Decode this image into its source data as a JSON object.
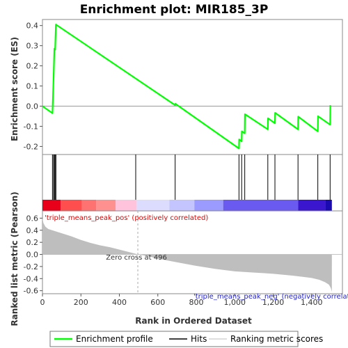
{
  "chart_data": {
    "type": "line",
    "title": "Enrichment plot: MIR185_3P",
    "xlabel": "Rank in Ordered Dataset",
    "ylabel_top": "Enrichment score (ES)",
    "ylabel_bottom": "Ranked list metric (Pearson)",
    "x_ticks": [
      0,
      200,
      400,
      600,
      800,
      1000,
      1200,
      1400
    ],
    "x_tick_labels": [
      "0",
      "200",
      "400",
      "600",
      "800",
      "1,000",
      "1,200",
      "1,400"
    ],
    "xlim": [
      0,
      1560
    ],
    "es_ylim": [
      -0.24,
      0.43
    ],
    "es_ticks": [
      -0.2,
      -0.1,
      0.0,
      0.1,
      0.2,
      0.3,
      0.4
    ],
    "es_tick_labels": [
      "-0.2",
      "-0.1",
      "0.0",
      "0.1",
      "0.2",
      "0.3",
      "0.4"
    ],
    "metric_ylim": [
      -0.65,
      0.72
    ],
    "metric_ticks": [
      -0.6,
      -0.4,
      -0.2,
      0.0,
      0.2,
      0.4,
      0.6
    ],
    "metric_tick_labels": [
      "-0.6",
      "-0.4",
      "-0.2",
      "0.0",
      "0.2",
      "0.4",
      "0.6"
    ],
    "series": [
      {
        "name": "Enrichment profile",
        "color": "#00ff00",
        "x": [
          0,
          52,
          58,
          62,
          66,
          70,
          690,
          691,
          1022,
          1023,
          1036,
          1037,
          1052,
          1053,
          1172,
          1173,
          1209,
          1210,
          1329,
          1330,
          1432,
          1433,
          1496,
          1497
        ],
        "y": [
          0.0,
          -0.035,
          0.145,
          0.285,
          0.28,
          0.405,
          0.005,
          0.012,
          -0.21,
          -0.165,
          -0.175,
          -0.125,
          -0.135,
          -0.04,
          -0.115,
          -0.06,
          -0.085,
          -0.033,
          -0.115,
          -0.052,
          -0.125,
          -0.05,
          -0.092,
          0.005
        ]
      }
    ],
    "hits": [
      52,
      58,
      62,
      66,
      70,
      485,
      690,
      1022,
      1036,
      1052,
      1172,
      1209,
      1329,
      1432,
      1496
    ],
    "metric": {
      "name": "Ranking metric scores",
      "color": "#bebebe",
      "x": [
        0,
        5,
        15,
        30,
        60,
        100,
        150,
        200,
        250,
        300,
        350,
        400,
        450,
        496,
        550,
        600,
        700,
        800,
        900,
        1000,
        1100,
        1200,
        1300,
        1350,
        1400,
        1440,
        1470,
        1490,
        1500,
        1505
      ],
      "y": [
        0.6,
        0.52,
        0.46,
        0.42,
        0.39,
        0.35,
        0.3,
        0.24,
        0.19,
        0.15,
        0.12,
        0.08,
        0.04,
        0.0,
        -0.03,
        -0.07,
        -0.13,
        -0.19,
        -0.24,
        -0.28,
        -0.3,
        -0.32,
        -0.35,
        -0.37,
        -0.39,
        -0.42,
        -0.46,
        -0.5,
        -0.56,
        -0.62
      ]
    },
    "color_bar": [
      {
        "x0": 0,
        "x1": 95,
        "color": "#e8001a"
      },
      {
        "x0": 95,
        "x1": 205,
        "color": "#ff4e4e"
      },
      {
        "x0": 205,
        "x1": 280,
        "color": "#ff7272"
      },
      {
        "x0": 280,
        "x1": 380,
        "color": "#ff9090"
      },
      {
        "x0": 380,
        "x1": 490,
        "color": "#ffc4dc"
      },
      {
        "x0": 490,
        "x1": 660,
        "color": "#dcdcff"
      },
      {
        "x0": 660,
        "x1": 790,
        "color": "#c4c4ff"
      },
      {
        "x0": 790,
        "x1": 940,
        "color": "#9a9aff"
      },
      {
        "x0": 940,
        "x1": 1330,
        "color": "#6a5aef"
      },
      {
        "x0": 1330,
        "x1": 1470,
        "color": "#3a16cf"
      },
      {
        "x0": 1470,
        "x1": 1505,
        "color": "#1a0aaf"
      }
    ],
    "zero_cross_x": 496,
    "annotations": {
      "pos_label": "'triple_means_peak_pos' (positively correlated)",
      "neg_label": "'triple_means_peak_neg' (negatively correlated)",
      "zero_cross": "Zero cross at 496"
    },
    "legend": {
      "placement": "bottom",
      "items": [
        {
          "label": "Enrichment profile",
          "color": "#00ff00"
        },
        {
          "label": "Hits",
          "color": "#000000"
        },
        {
          "label": "Ranking metric scores",
          "color": "#bebebe"
        }
      ]
    }
  }
}
